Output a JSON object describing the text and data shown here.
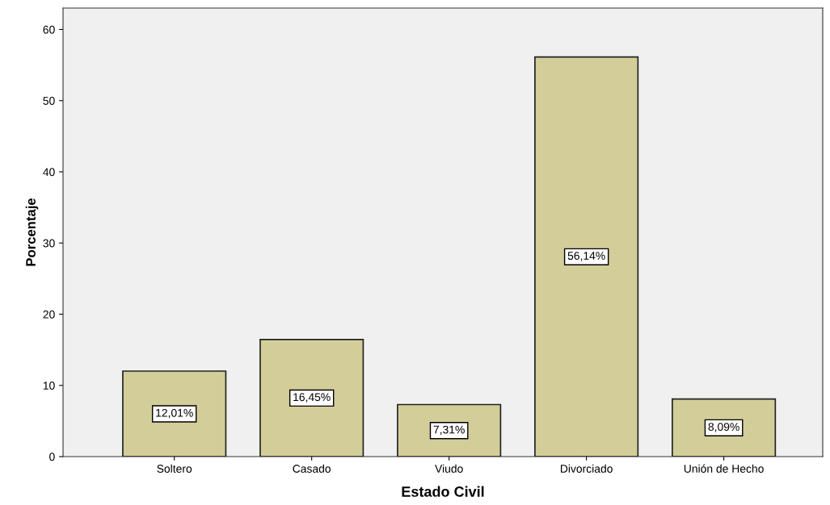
{
  "chart_data": {
    "type": "bar",
    "xlabel": "Estado Civil",
    "ylabel": "Porcentaje",
    "categories": [
      "Soltero",
      "Casado",
      "Viudo",
      "Divorciado",
      "Unión de Hecho"
    ],
    "values": [
      12.01,
      16.45,
      7.31,
      56.14,
      8.09
    ],
    "value_labels": [
      "12,01%",
      "16,45%",
      "7,31%",
      "56,14%",
      "8,09%"
    ],
    "color": "#d3ce99",
    "ylim": [
      0,
      63
    ],
    "yticks": [
      0,
      10,
      20,
      30,
      40,
      50,
      60
    ],
    "grid": false
  }
}
